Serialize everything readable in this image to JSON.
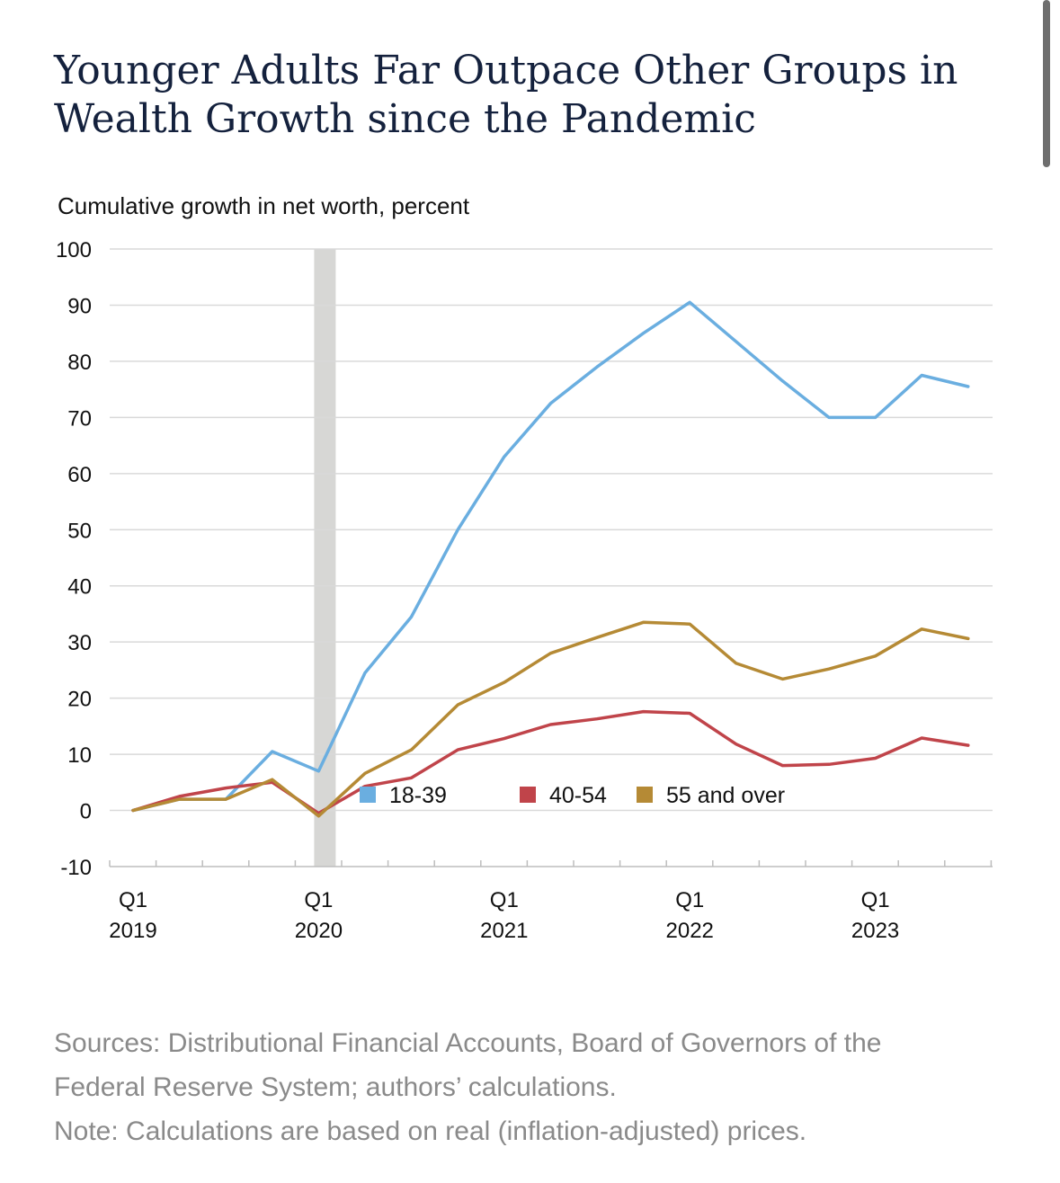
{
  "title": "Younger Adults Far Outpace Other Groups in Wealth Growth since the Pandemic",
  "sources_line1": "Sources: Distributional Financial Accounts, Board of Governors of the",
  "sources_line2": "Federal Reserve System; authors’ calculations.",
  "note": "Note: Calculations are based on real (inflation-adjusted) prices.",
  "chart_data": {
    "type": "line",
    "title": "Younger Adults Far Outpace Other Groups in Wealth Growth since the Pandemic",
    "ylabel": "Cumulative growth in net worth, percent",
    "xlabel": "",
    "ylim": [
      -10,
      100
    ],
    "y_ticks": [
      -10,
      0,
      10,
      20,
      30,
      40,
      50,
      60,
      70,
      80,
      90,
      100
    ],
    "x": [
      "2019Q1",
      "2019Q2",
      "2019Q3",
      "2019Q4",
      "2020Q1",
      "2020Q2",
      "2020Q3",
      "2020Q4",
      "2021Q1",
      "2021Q2",
      "2021Q3",
      "2021Q4",
      "2022Q1",
      "2022Q2",
      "2022Q3",
      "2022Q4",
      "2023Q1",
      "2023Q2",
      "2023Q3"
    ],
    "x_tick_labels": [
      {
        "top": "Q1",
        "bottom": "2019"
      },
      {
        "top": "Q1",
        "bottom": "2020"
      },
      {
        "top": "Q1",
        "bottom": "2021"
      },
      {
        "top": "Q1",
        "bottom": "2022"
      },
      {
        "top": "Q1",
        "bottom": "2023"
      }
    ],
    "grid": true,
    "legend_position": "bottom",
    "recession_shading": "2020Q1",
    "series": [
      {
        "name": "18-39",
        "color": "#6aaee0",
        "values": [
          0,
          2,
          2,
          10.5,
          7,
          24.5,
          34.5,
          50,
          63,
          72.5,
          79,
          85,
          90.5,
          83.5,
          76.5,
          70,
          70,
          77.5,
          75.5
        ]
      },
      {
        "name": "40-54",
        "color": "#c0444a",
        "values": [
          0,
          2.5,
          4,
          5,
          -0.5,
          4.3,
          5.8,
          10.8,
          12.8,
          15.3,
          16.3,
          17.6,
          17.3,
          11.8,
          8,
          8.2,
          9.3,
          12.9,
          11.6
        ]
      },
      {
        "name": "55 and over",
        "color": "#b58a35",
        "values": [
          0,
          2,
          2,
          5.5,
          -1,
          6.6,
          10.8,
          18.8,
          22.8,
          28,
          30.8,
          33.5,
          33.2,
          26.2,
          23.4,
          25.2,
          27.5,
          32.3,
          30.6
        ]
      }
    ]
  }
}
